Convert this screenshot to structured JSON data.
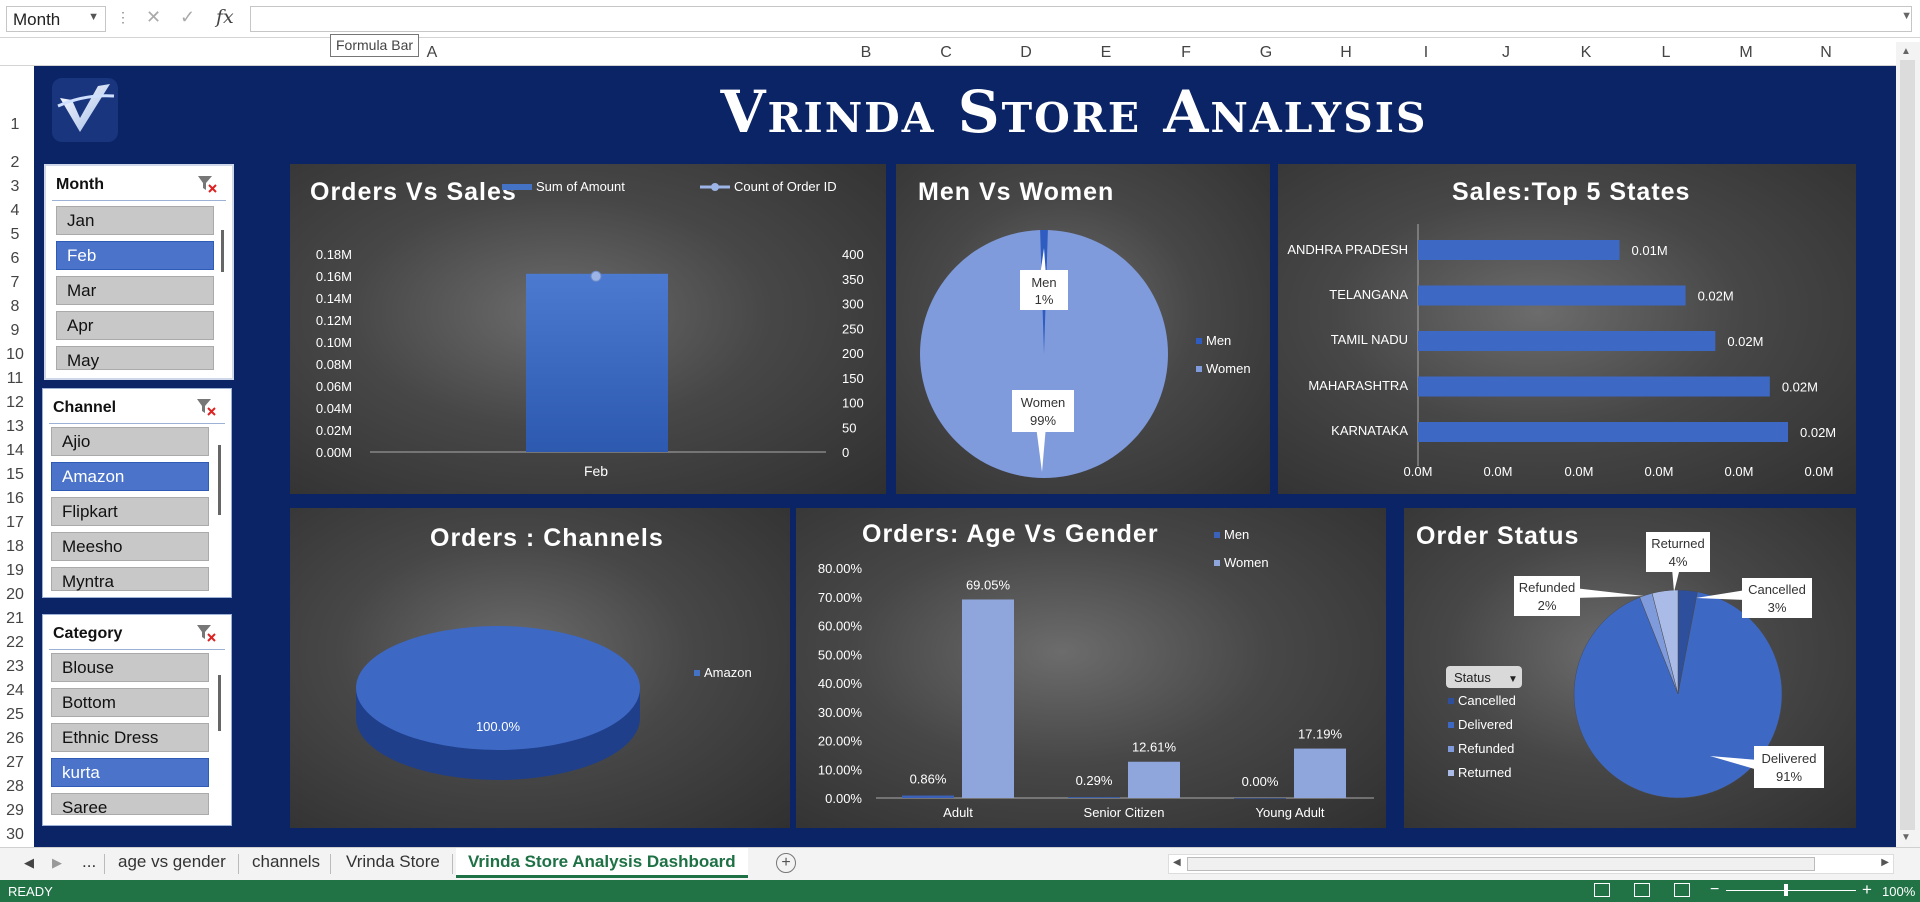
{
  "formula_bar": {
    "name_box": "Month",
    "fx": "fx",
    "tooltip": "Formula Bar",
    "value": ""
  },
  "columns": [
    "A",
    "B",
    "C",
    "D",
    "E",
    "F",
    "G",
    "H",
    "I",
    "J",
    "K",
    "L",
    "M",
    "N"
  ],
  "rows": [
    "1",
    "2",
    "3",
    "4",
    "5",
    "6",
    "7",
    "8",
    "9",
    "10",
    "11",
    "12",
    "13",
    "14",
    "15",
    "16",
    "17",
    "18",
    "19",
    "20",
    "21",
    "22",
    "23",
    "24",
    "25",
    "26",
    "27",
    "28",
    "29",
    "30"
  ],
  "dashboard": {
    "title": "Vrinda Store Analysis"
  },
  "slicers": {
    "month": {
      "header": "Month",
      "items": [
        "Jan",
        "Feb",
        "Mar",
        "Apr",
        "May"
      ],
      "selected": "Feb"
    },
    "channel": {
      "header": "Channel",
      "items": [
        "Ajio",
        "Amazon",
        "Flipkart",
        "Meesho",
        "Myntra"
      ],
      "selected": "Amazon"
    },
    "category": {
      "header": "Category",
      "items": [
        "Blouse",
        "Bottom",
        "Ethnic Dress",
        "kurta",
        "Saree"
      ],
      "selected": "kurta"
    }
  },
  "charts": {
    "orders_vs_sales": {
      "title": "Orders Vs Sales",
      "legend_amount": "Sum of Amount",
      "legend_count": "Count of Order ID",
      "y_left_ticks": [
        "0.18M",
        "0.16M",
        "0.14M",
        "0.12M",
        "0.10M",
        "0.08M",
        "0.06M",
        "0.04M",
        "0.02M",
        "0.00M"
      ],
      "y_right_ticks": [
        "400",
        "350",
        "300",
        "250",
        "200",
        "150",
        "100",
        "50",
        "0"
      ],
      "category": "Feb"
    },
    "men_vs_women": {
      "title": "Men Vs Women",
      "men_label": "Men",
      "men_pct": "1%",
      "women_label": "Women",
      "women_pct": "99%",
      "legend_men": "Men",
      "legend_women": "Women"
    },
    "top_states": {
      "title": "Sales:Top 5 States",
      "states": [
        "ANDHRA PRADESH",
        "TELANGANA",
        "TAMIL NADU",
        "MAHARASHTRA",
        "KARNATAKA"
      ],
      "labels": [
        "0.01M",
        "0.02M",
        "0.02M",
        "0.02M",
        "0.02M"
      ],
      "x_ticks": [
        "0.0M",
        "0.0M",
        "0.0M",
        "0.0M",
        "0.0M",
        "0.0M"
      ]
    },
    "channels": {
      "title": "Orders : Channels",
      "slice_label": "100.0%",
      "legend": "Amazon"
    },
    "age_gender": {
      "title": "Orders: Age Vs Gender",
      "legend_men": "Men",
      "legend_women": "Women",
      "y_ticks": [
        "80.00%",
        "70.00%",
        "60.00%",
        "50.00%",
        "40.00%",
        "30.00%",
        "20.00%",
        "10.00%",
        "0.00%"
      ],
      "categories": [
        "Adult",
        "Senior Citizen",
        "Young Adult"
      ],
      "men_labels": [
        "0.86%",
        "0.29%",
        "0.00%"
      ],
      "women_labels": [
        "69.05%",
        "12.61%",
        "17.19%"
      ]
    },
    "order_status": {
      "title": "Order Status",
      "filter": "Status",
      "legend": [
        "Cancelled",
        "Delivered",
        "Refunded",
        "Returned"
      ],
      "callouts": {
        "returned_name": "Returned",
        "returned_pct": "4%",
        "refunded_name": "Refunded",
        "refunded_pct": "2%",
        "cancelled_name": "Cancelled",
        "cancelled_pct": "3%",
        "delivered_name": "Delivered",
        "delivered_pct": "91%"
      }
    }
  },
  "chart_data": [
    {
      "type": "bar",
      "title": "Orders Vs Sales",
      "categories": [
        "Feb"
      ],
      "series": [
        {
          "name": "Sum of Amount",
          "values": [
            0.162
          ]
        },
        {
          "name": "Count of Order ID",
          "values": [
            355
          ]
        }
      ],
      "ylabel": "",
      "ylim": [
        0,
        0.18
      ],
      "y2lim": [
        0,
        400
      ],
      "legend": "top"
    },
    {
      "type": "pie",
      "title": "Men Vs Women",
      "categories": [
        "Men",
        "Women"
      ],
      "values": [
        1,
        99
      ],
      "legend": "right"
    },
    {
      "type": "bar",
      "title": "Sales:Top 5 States",
      "categories": [
        "ANDHRA PRADESH",
        "TELANGANA",
        "TAMIL NADU",
        "MAHARASHTRA",
        "KARNATAKA"
      ],
      "values": [
        0.0122,
        0.0162,
        0.018,
        0.0213,
        0.0224
      ],
      "orientation": "horizontal"
    },
    {
      "type": "pie",
      "title": "Orders : Channels",
      "categories": [
        "Amazon"
      ],
      "values": [
        100.0
      ],
      "legend": "right"
    },
    {
      "type": "bar",
      "title": "Orders: Age Vs Gender",
      "categories": [
        "Adult",
        "Senior Citizen",
        "Young Adult"
      ],
      "series": [
        {
          "name": "Men",
          "values": [
            0.86,
            0.29,
            0.0
          ]
        },
        {
          "name": "Women",
          "values": [
            69.05,
            12.61,
            17.19
          ]
        }
      ],
      "ylim": [
        0,
        80
      ],
      "legend": "top-right"
    },
    {
      "type": "pie",
      "title": "Order Status",
      "categories": [
        "Cancelled",
        "Delivered",
        "Refunded",
        "Returned"
      ],
      "values": [
        3,
        91,
        2,
        4
      ],
      "legend": "left"
    }
  ],
  "sheet_tabs": {
    "ellipsis": "...",
    "tabs": [
      "age vs gender",
      "channels",
      "Vrinda Store",
      "Vrinda Store Analysis Dashboard"
    ],
    "active": "Vrinda Store Analysis Dashboard"
  },
  "status_bar": {
    "ready": "READY",
    "zoom": "100%"
  },
  "colors": {
    "dashboard_bg": "#0b2465",
    "bar_blue": "#4472c4",
    "bar_light": "#8fa6dc",
    "status_green": "#217346",
    "selected_slicer": "#4a73c9"
  }
}
